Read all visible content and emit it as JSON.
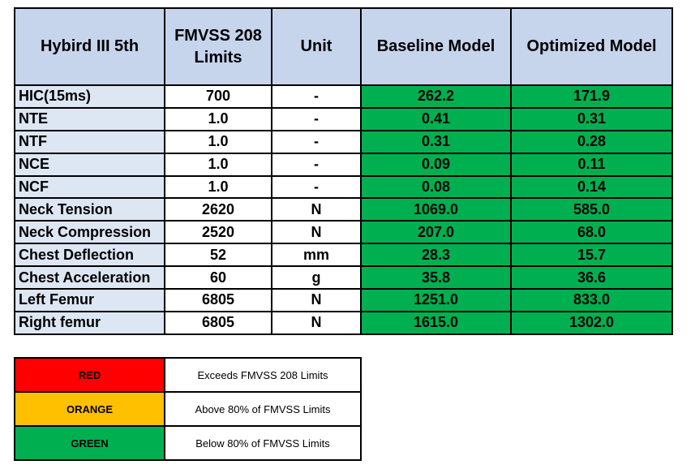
{
  "table": {
    "headers": [
      "Hybird III 5th",
      "FMVSS 208 Limits",
      "Unit",
      "Baseline Model",
      "Optimized Model"
    ],
    "rows": [
      [
        "HIC(15ms)",
        "700",
        "-",
        "262.2",
        "171.9"
      ],
      [
        "NTE",
        "1.0",
        "-",
        "0.41",
        "0.31"
      ],
      [
        "NTF",
        "1.0",
        "-",
        "0.31",
        "0.28"
      ],
      [
        "NCE",
        "1.0",
        "-",
        "0.09",
        "0.11"
      ],
      [
        "NCF",
        "1.0",
        "-",
        "0.08",
        "0.14"
      ],
      [
        "Neck Tension",
        "2620",
        "N",
        "1069.0",
        "585.0"
      ],
      [
        "Neck Compression",
        "2520",
        "N",
        "207.0",
        "68.0"
      ],
      [
        "Chest Deflection",
        "52",
        "mm",
        "28.3",
        "15.7"
      ],
      [
        "Chest Acceleration",
        "60",
        "g",
        "35.8",
        "36.6"
      ],
      [
        "Left Femur",
        "6805",
        "N",
        "1251.0",
        "833.0"
      ],
      [
        "Right femur",
        "6805",
        "N",
        "1615.0",
        "1302.0"
      ]
    ],
    "result_status": "green"
  },
  "colors": {
    "header_bg": "#c6d4ec",
    "param_bg": "#dde6f3",
    "red": "#ff0000",
    "orange": "#ffc000",
    "green": "#00b050"
  },
  "legend": [
    {
      "label": "RED",
      "description": "Exceeds FMVSS 208 Limits",
      "color": "#ff0000"
    },
    {
      "label": "ORANGE",
      "description": "Above 80% of FMVSS Limits",
      "color": "#ffc000"
    },
    {
      "label": "GREEN",
      "description": "Below 80% of FMVSS Limits",
      "color": "#00b050"
    }
  ]
}
